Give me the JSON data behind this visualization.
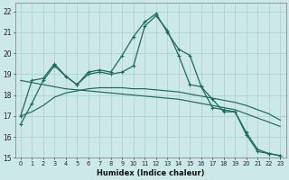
{
  "xlabel": "Humidex (Indice chaleur)",
  "ylabel": "",
  "background_color": "#cde8e8",
  "grid_color": "#aacece",
  "line_color": "#1a6b5a",
  "xlim": [
    -0.5,
    23.5
  ],
  "ylim": [
    15,
    22.4
  ],
  "xticks": [
    0,
    1,
    2,
    3,
    4,
    5,
    6,
    7,
    8,
    9,
    10,
    11,
    12,
    13,
    14,
    15,
    16,
    17,
    18,
    19,
    20,
    21,
    22,
    23
  ],
  "yticks": [
    15,
    16,
    17,
    18,
    19,
    20,
    21,
    22
  ],
  "line_main": {
    "x": [
      0,
      1,
      2,
      3,
      4,
      5,
      6,
      7,
      8,
      9,
      10,
      11,
      12,
      13,
      14,
      15,
      16,
      17,
      18,
      19,
      20,
      21,
      22,
      23
    ],
    "y": [
      16.6,
      17.6,
      18.7,
      19.4,
      18.9,
      18.5,
      19.1,
      19.2,
      19.1,
      19.9,
      20.8,
      21.5,
      21.9,
      21.0,
      20.2,
      19.9,
      18.4,
      17.4,
      17.3,
      17.2,
      16.1,
      15.3,
      15.2,
      15.1
    ]
  },
  "line_small_peak": {
    "x": [
      0,
      1,
      2,
      3,
      4,
      5,
      6,
      7,
      8,
      9,
      10,
      11,
      12,
      13,
      14,
      15,
      16,
      17,
      18,
      19,
      20,
      21,
      22,
      23
    ],
    "y": [
      17.0,
      18.7,
      18.8,
      19.5,
      18.9,
      18.5,
      19.0,
      19.1,
      19.0,
      19.1,
      19.4,
      21.3,
      21.8,
      21.1,
      19.9,
      18.5,
      18.4,
      17.8,
      17.2,
      17.2,
      16.2,
      15.4,
      15.2,
      15.1
    ]
  },
  "line_flat1": {
    "x": [
      0,
      1,
      2,
      3,
      4,
      5,
      6,
      7,
      8,
      9,
      10,
      11,
      12,
      13,
      14,
      15,
      16,
      17,
      18,
      19,
      20,
      21,
      22,
      23
    ],
    "y": [
      18.7,
      18.6,
      18.5,
      18.4,
      18.3,
      18.25,
      18.2,
      18.15,
      18.1,
      18.05,
      18.0,
      17.95,
      17.9,
      17.85,
      17.8,
      17.7,
      17.6,
      17.5,
      17.4,
      17.3,
      17.1,
      16.9,
      16.7,
      16.5
    ]
  },
  "line_flat2": {
    "x": [
      0,
      1,
      2,
      3,
      4,
      5,
      6,
      7,
      8,
      9,
      10,
      11,
      12,
      13,
      14,
      15,
      16,
      17,
      18,
      19,
      20,
      21,
      22,
      23
    ],
    "y": [
      17.0,
      17.2,
      17.5,
      17.9,
      18.1,
      18.2,
      18.3,
      18.35,
      18.35,
      18.35,
      18.3,
      18.3,
      18.25,
      18.2,
      18.15,
      18.05,
      17.95,
      17.85,
      17.75,
      17.65,
      17.5,
      17.3,
      17.1,
      16.8
    ]
  }
}
